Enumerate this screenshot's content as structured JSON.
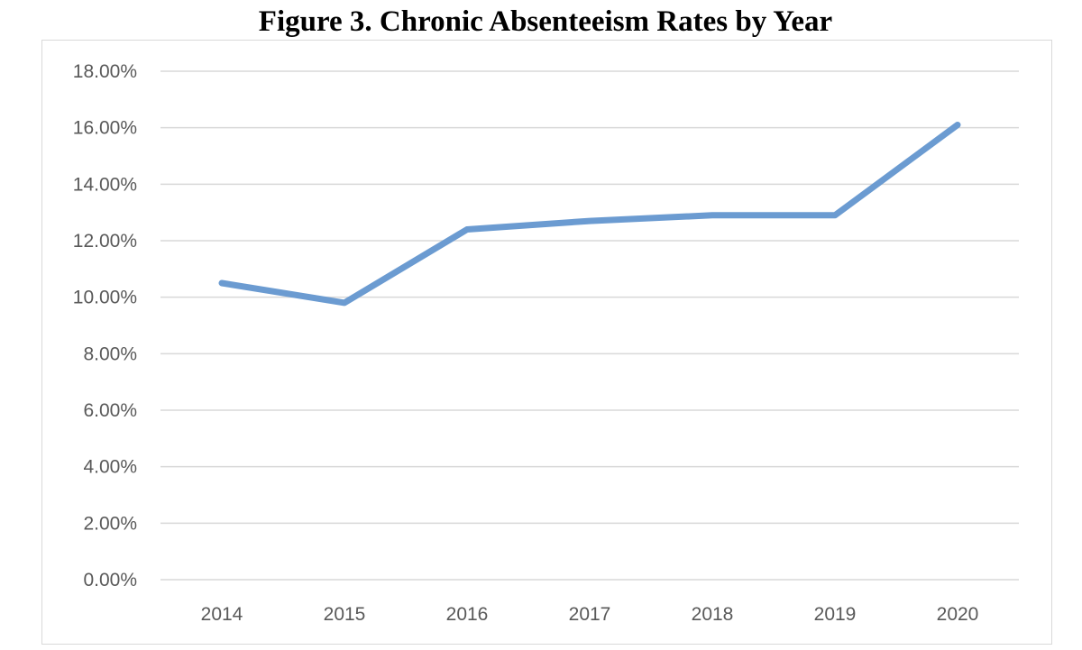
{
  "chart_data": {
    "type": "line",
    "title": "Figure 3. Chronic Absenteeism Rates by Year",
    "xlabel": "",
    "ylabel": "",
    "categories": [
      "2014",
      "2015",
      "2016",
      "2017",
      "2018",
      "2019",
      "2020"
    ],
    "series": [
      {
        "values": [
          10.5,
          9.8,
          12.4,
          12.7,
          12.9,
          12.9,
          16.1
        ],
        "color": "#6b9bd1"
      }
    ],
    "ylim": [
      0,
      18
    ],
    "y_ticks": [
      0,
      2,
      4,
      6,
      8,
      10,
      12,
      14,
      16,
      18
    ],
    "y_tick_labels": [
      "0.00%",
      "2.00%",
      "4.00%",
      "6.00%",
      "8.00%",
      "10.00%",
      "12.00%",
      "14.00%",
      "16.00%",
      "18.00%"
    ],
    "grid": true,
    "legend": "none"
  }
}
